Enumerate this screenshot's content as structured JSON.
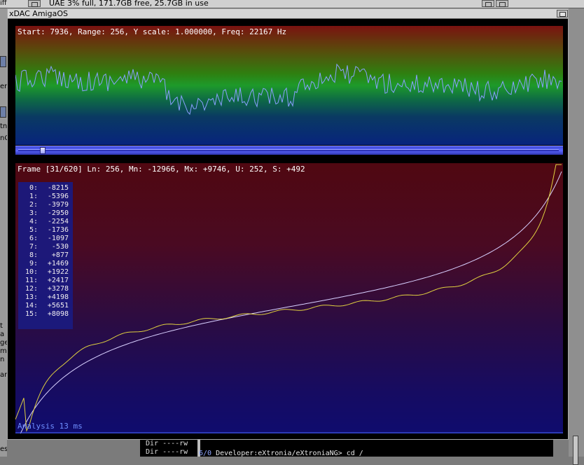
{
  "screen": {
    "title": "UAE  3% full, 171.7GB free, 25.7GB in use",
    "left_label": "iff"
  },
  "desktop_left_text": [
    "er",
    "tn",
    "nC",
    "t",
    "a",
    "ge",
    "m",
    "n",
    "ar",
    "es"
  ],
  "shell": {
    "rows": [
      "Dir ----rw",
      "Dir ----rw"
    ],
    "prompt_drive": "6/0",
    "prompt_path": " Developer:eXtronia/eXtroniaNG> cd /"
  },
  "window": {
    "title": "xDAC AmigaOS"
  },
  "waveform": {
    "status": "Start: 7936, Range: 256, Y scale: 1.000000, Freq: 22167 Hz",
    "line_color": "#8aa0ff",
    "slider_position": 0.05
  },
  "distribution": {
    "status": "Frame [31/620] Ln: 256, Mn: -12966, Mx: +9746, U: 252, S: +492",
    "footer": "Analysis 13 ms",
    "values": [
      {
        "index": "0:",
        "value": "-8215"
      },
      {
        "index": "1:",
        "value": "-5396"
      },
      {
        "index": "2:",
        "value": "-3979"
      },
      {
        "index": "3:",
        "value": "-2950"
      },
      {
        "index": "4:",
        "value": "-2254"
      },
      {
        "index": "5:",
        "value": "-1736"
      },
      {
        "index": "6:",
        "value": "-1097"
      },
      {
        "index": "7:",
        "value": "-530"
      },
      {
        "index": "8:",
        "value": "+877"
      },
      {
        "index": "9:",
        "value": "+1469"
      },
      {
        "index": "10:",
        "value": "+1922"
      },
      {
        "index": "11:",
        "value": "+2417"
      },
      {
        "index": "12:",
        "value": "+3278"
      },
      {
        "index": "13:",
        "value": "+4198"
      },
      {
        "index": "14:",
        "value": "+5651"
      },
      {
        "index": "15:",
        "value": "+8098"
      }
    ],
    "sorted_color": "#e0d040",
    "fit_color": "#d8d0ff",
    "baseline_color": "#4a6aff"
  }
}
